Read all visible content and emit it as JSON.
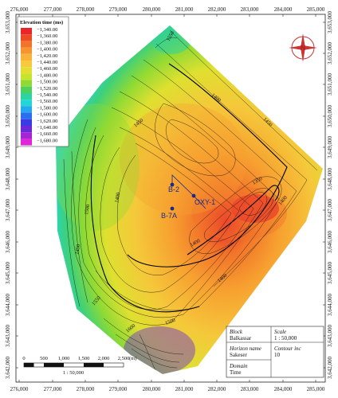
{
  "top_ticks": [
    "276,000",
    "277,000",
    "278,000",
    "279,000",
    "280,000",
    "281,000",
    "282,000",
    "283,000",
    "284,000",
    "285,000"
  ],
  "bottom_ticks": [
    "276,000",
    "277,000",
    "278,000",
    "279,000",
    "280,000",
    "281,000",
    "282,000",
    "283,000",
    "284,000",
    "285,000"
  ],
  "left_ticks": [
    "3,653,000",
    "3,652,000",
    "3,651,000",
    "3,650,000",
    "3,649,000",
    "3,648,000",
    "3,647,000",
    "3,646,000",
    "3,645,000",
    "3,644,000",
    "3,643,000",
    "3,642,000"
  ],
  "right_ticks": [
    "3,653,000",
    "3,652,000",
    "3,651,000",
    "3,650,000",
    "3,649,000",
    "3,648,000",
    "3,647,000",
    "3,646,000",
    "3,645,000",
    "3,644,000",
    "3,643,000",
    "3,642,000"
  ],
  "legend": {
    "title": "Elevation time (ms)",
    "entries": [
      {
        "label": "−1,340.00",
        "color": "#e8262a"
      },
      {
        "label": "−1,360.00",
        "color": "#ee4a25"
      },
      {
        "label": "−1,380.00",
        "color": "#f2742a"
      },
      {
        "label": "−1,400.00",
        "color": "#f6952e"
      },
      {
        "label": "−1,420.00",
        "color": "#f9b23a"
      },
      {
        "label": "−1,440.00",
        "color": "#f7c93c"
      },
      {
        "label": "−1,460.00",
        "color": "#e6dd32"
      },
      {
        "label": "−1,480.00",
        "color": "#c6e42c"
      },
      {
        "label": "−1,500.00",
        "color": "#8fda34"
      },
      {
        "label": "−1,520.00",
        "color": "#4fd05a"
      },
      {
        "label": "−1,540.00",
        "color": "#2ed4a0"
      },
      {
        "label": "−1,560.00",
        "color": "#22d6d8"
      },
      {
        "label": "−1,580.00",
        "color": "#25a8ee"
      },
      {
        "label": "−1,600.00",
        "color": "#2b6ef0"
      },
      {
        "label": "−1,620.00",
        "color": "#3a3ae6"
      },
      {
        "label": "−1,640.00",
        "color": "#6a2ad8"
      },
      {
        "label": "−1,660.00",
        "color": "#a525d4"
      },
      {
        "label": "−1,680.00",
        "color": "#e025d8"
      }
    ]
  },
  "wells": [
    {
      "name": "B-2"
    },
    {
      "name": "OXY-1"
    },
    {
      "name": "B-7A"
    }
  ],
  "contour_labels": [
    "1550",
    "1450",
    "1400",
    "1450",
    "1400",
    "1500",
    "1400",
    "1400",
    "1350",
    "1400",
    "1450",
    "1550",
    "1600",
    "1500"
  ],
  "compass": {
    "letter": "N"
  },
  "scale_bar": {
    "ticks": [
      "0",
      "500",
      "1,000",
      "1,500",
      "2,000",
      "2,500",
      "(m)"
    ],
    "ratio": "1 : 50,000"
  },
  "info_box": {
    "block_title": "Block",
    "block_value": "Balkassar",
    "scale_title": "Scale",
    "scale_value": "1 : 50,000",
    "horizon_title": "Horizon name",
    "horizon_value": "Sakeser",
    "contour_title": "Contour inc",
    "contour_value": "10",
    "domain_title": "Domain",
    "domain_value": "Time"
  },
  "colors": {
    "frame": "#222222",
    "well": "#1a2a8a"
  }
}
